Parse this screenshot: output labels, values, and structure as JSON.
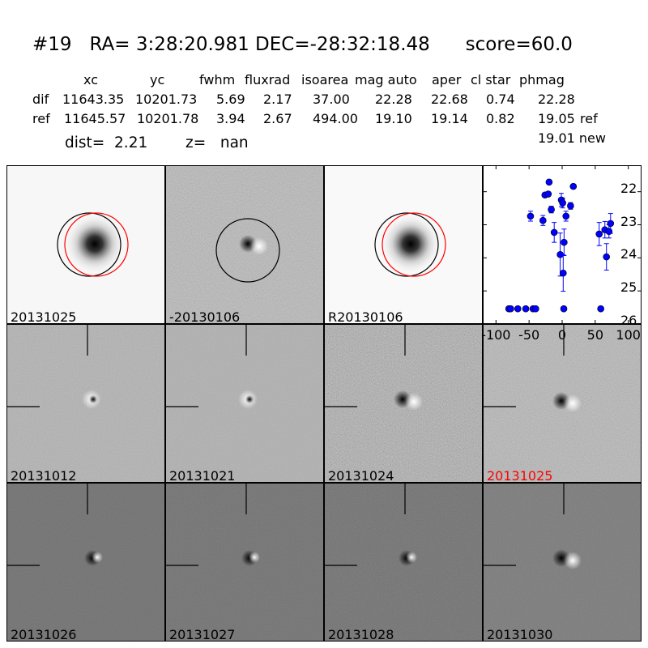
{
  "header": {
    "title": "#19   RA= 3:28:20.981 DEC=-28:32:18.48      score=60.0",
    "columns": [
      "xc",
      "yc",
      "fwhm",
      "fluxrad",
      "isoarea",
      "mag auto",
      "aper",
      "cl star",
      "phmag"
    ],
    "rows": [
      {
        "label": "dif",
        "values": [
          "11643.35",
          "10201.73",
          "5.69",
          "2.17",
          "37.00",
          "22.28",
          "22.68",
          "0.74",
          "22.28"
        ],
        "suffix": ""
      },
      {
        "label": "ref",
        "values": [
          "11645.57",
          "10201.78",
          "3.94",
          "2.67",
          "494.00",
          "19.10",
          "19.14",
          "0.82",
          "19.05"
        ],
        "suffix": "ref"
      }
    ],
    "new_phmag": "19.01 new",
    "dist": "dist=  2.21",
    "z": "z=   nan"
  },
  "panels": [
    {
      "label": "20131025",
      "color": "#000000"
    },
    {
      "label": "-20130106",
      "color": "#000000"
    },
    {
      "label": "R20130106",
      "color": "#000000"
    },
    {
      "label": "20131012",
      "color": "#000000"
    },
    {
      "label": "20131021",
      "color": "#000000"
    },
    {
      "label": "20131024",
      "color": "#000000"
    },
    {
      "label": "20131025",
      "color": "#ff0000"
    },
    {
      "label": "20131026",
      "color": "#000000"
    },
    {
      "label": "20131027",
      "color": "#000000"
    },
    {
      "label": "20131028",
      "color": "#000000"
    },
    {
      "label": "20131030",
      "color": "#000000"
    }
  ],
  "chart_data": {
    "type": "scatter",
    "xlim": [
      -120,
      120
    ],
    "ylim": [
      26,
      21.2
    ],
    "y_inverted": true,
    "xticks": [
      -100,
      -50,
      0,
      50,
      100
    ],
    "yticks": [
      22,
      23,
      24,
      25,
      26
    ],
    "marker_color": "#0000ff",
    "points": [
      {
        "x": -47.8,
        "y": 22.74,
        "err": 0.15
      },
      {
        "x": -29,
        "y": 22.87,
        "err": 0.15
      },
      {
        "x": -19.7,
        "y": 21.71,
        "err": 0.05
      },
      {
        "x": -26,
        "y": 22.1,
        "err": 0.05
      },
      {
        "x": -21,
        "y": 22.07,
        "err": 0.05
      },
      {
        "x": -16.4,
        "y": 22.54,
        "err": 0.1
      },
      {
        "x": -12,
        "y": 23.23,
        "err": 0.3
      },
      {
        "x": -1.2,
        "y": 22.25,
        "err": 0.2
      },
      {
        "x": 0.8,
        "y": 22.34,
        "err": 0.15
      },
      {
        "x": 5.8,
        "y": 22.74,
        "err": 0.15
      },
      {
        "x": 12.7,
        "y": 22.43,
        "err": 0.1
      },
      {
        "x": 16.9,
        "y": 21.84,
        "err": 0.05
      },
      {
        "x": -2.9,
        "y": 23.9,
        "err": 0.65
      },
      {
        "x": 2.9,
        "y": 23.53,
        "err": 0.4
      },
      {
        "x": 1.6,
        "y": 24.46,
        "err": 0.55
      },
      {
        "x": 56,
        "y": 23.28,
        "err": 0.35
      },
      {
        "x": 64.6,
        "y": 23.15,
        "err": 0.25
      },
      {
        "x": 70.8,
        "y": 23.2,
        "err": 0.2
      },
      {
        "x": 73.2,
        "y": 22.96,
        "err": 0.3
      },
      {
        "x": 67,
        "y": 23.97,
        "err": 0.4
      },
      {
        "x": -80.6,
        "y": 25.54,
        "err": 0.05
      },
      {
        "x": -77.8,
        "y": 25.54,
        "err": 0.05
      },
      {
        "x": -67,
        "y": 25.54,
        "err": 0.05
      },
      {
        "x": -55,
        "y": 25.54,
        "err": 0.05
      },
      {
        "x": -44,
        "y": 25.54,
        "err": 0.05
      },
      {
        "x": -40,
        "y": 25.54,
        "err": 0.05
      },
      {
        "x": 2.5,
        "y": 25.54,
        "err": 0.05
      },
      {
        "x": 58.4,
        "y": 25.54,
        "err": 0.05
      }
    ]
  }
}
